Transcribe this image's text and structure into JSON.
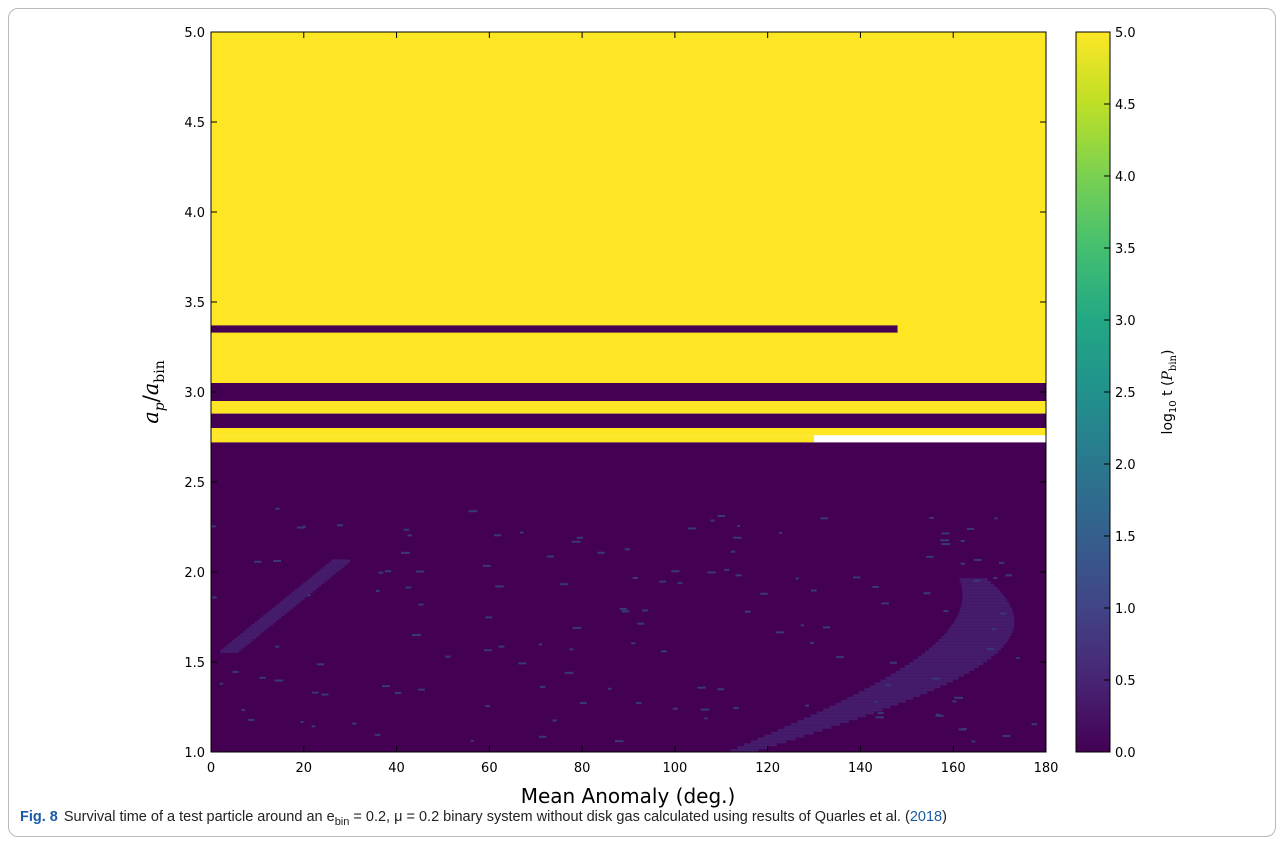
{
  "chart_data": {
    "type": "heatmap",
    "xlabel": "Mean Anomaly (deg.)",
    "ylabel": "a_p / a_bin",
    "xlim": [
      0,
      180
    ],
    "ylim": [
      1.0,
      5.0
    ],
    "x_ticks": [
      "0",
      "20",
      "40",
      "60",
      "80",
      "100",
      "120",
      "140",
      "160",
      "180"
    ],
    "y_ticks": [
      "1.0",
      "1.5",
      "2.0",
      "2.5",
      "3.0",
      "3.5",
      "4.0",
      "4.5",
      "5.0"
    ],
    "colorbar": {
      "label": "log10 t (P_bin)",
      "range": [
        0.0,
        5.0
      ],
      "ticks": [
        "0.0",
        "0.5",
        "1.0",
        "1.5",
        "2.0",
        "2.5",
        "3.0",
        "3.5",
        "4.0",
        "4.5",
        "5.0"
      ],
      "colormap": "viridis"
    },
    "regions": [
      {
        "y_from": 3.05,
        "y_to": 5.0,
        "value": 5.0
      },
      {
        "y_from": 3.33,
        "y_to": 3.37,
        "x_from": 0,
        "x_to": 148,
        "value": 0.0
      },
      {
        "y_from": 2.95,
        "y_to": 3.05,
        "value": 0.0
      },
      {
        "y_from": 2.88,
        "y_to": 2.95,
        "value": 5.0
      },
      {
        "y_from": 2.8,
        "y_to": 2.88,
        "value": 0.0
      },
      {
        "y_from": 2.76,
        "y_to": 2.8,
        "value": 5.0
      },
      {
        "y_from": 2.72,
        "y_to": 2.76,
        "x_from": 0,
        "x_to": 130,
        "value": 5.0
      },
      {
        "y_from": 1.0,
        "y_to": 2.72,
        "value": 0.0
      }
    ]
  },
  "caption": {
    "fig_label": "Fig. 8",
    "text_before": "Survival time of a test particle around an e",
    "sub_bin": "bin",
    "text_middle": " = 0.2, μ = 0.2 binary system without disk gas calculated using results of Quarles et al. (",
    "cite_year": "2018",
    "text_after": ")"
  },
  "colors": {
    "yellow": "#fde725",
    "dark_purple": "#440154",
    "teal_speckle": "#31688e",
    "mid_purple": "#46327e"
  }
}
